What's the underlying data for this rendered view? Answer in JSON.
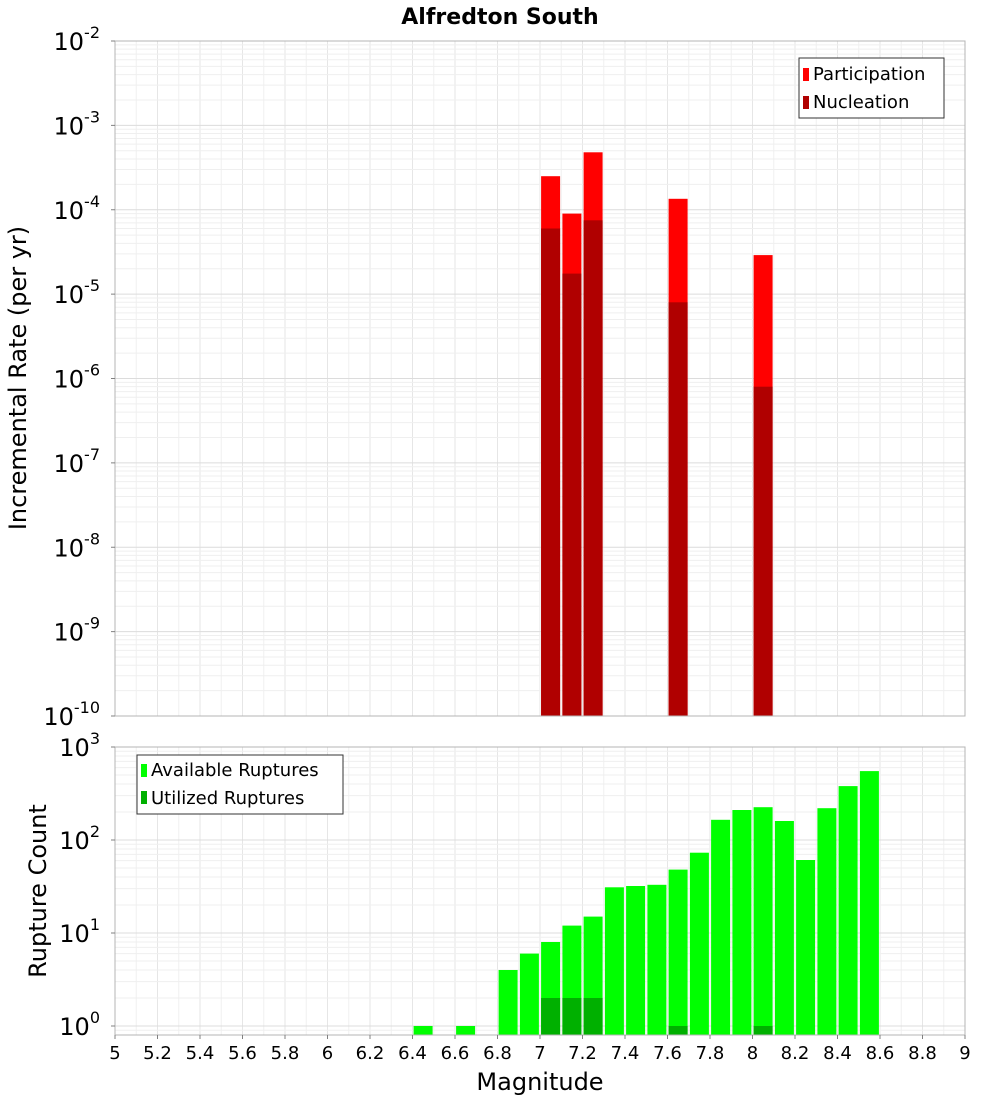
{
  "chart_data": [
    {
      "type": "bar",
      "title": "Alfredton South",
      "xlabel": "",
      "ylabel": "Incremental Rate (per yr)",
      "yscale": "log",
      "ylim": [
        1e-10,
        0.01
      ],
      "xlim": [
        5,
        9
      ],
      "y_ticks": [
        {
          "base": "10",
          "exp": "-10",
          "value": 1e-10
        },
        {
          "base": "10",
          "exp": "-9",
          "value": 1e-09
        },
        {
          "base": "10",
          "exp": "-8",
          "value": 1e-08
        },
        {
          "base": "10",
          "exp": "-7",
          "value": 1e-07
        },
        {
          "base": "10",
          "exp": "-6",
          "value": 1e-06
        },
        {
          "base": "10",
          "exp": "-5",
          "value": 1e-05
        },
        {
          "base": "10",
          "exp": "-4",
          "value": 0.0001
        },
        {
          "base": "10",
          "exp": "-3",
          "value": 0.001
        },
        {
          "base": "10",
          "exp": "-2",
          "value": 0.01
        }
      ],
      "legend": {
        "position": "top-right",
        "entries": [
          "Participation",
          "Nucleation"
        ]
      },
      "series": [
        {
          "name": "Participation",
          "color": "#ff0000",
          "x": [
            7.05,
            7.15,
            7.25,
            7.65,
            8.05
          ],
          "values": [
            0.00025,
            9e-05,
            0.00048,
            0.000135,
            2.9e-05
          ]
        },
        {
          "name": "Nucleation",
          "color": "#b00000",
          "x": [
            7.05,
            7.15,
            7.25,
            7.65,
            8.05
          ],
          "values": [
            6e-05,
            1.75e-05,
            7.5e-05,
            8e-06,
            8e-07
          ]
        }
      ]
    },
    {
      "type": "bar",
      "title": "",
      "xlabel": "Magnitude",
      "ylabel": "Rupture Count",
      "yscale": "log",
      "ylim": [
        0.8,
        1000
      ],
      "xlim": [
        5,
        9
      ],
      "y_ticks": [
        {
          "base": "10",
          "exp": "0",
          "value": 1
        },
        {
          "base": "10",
          "exp": "1",
          "value": 10
        },
        {
          "base": "10",
          "exp": "2",
          "value": 100
        },
        {
          "base": "10",
          "exp": "3",
          "value": 1000
        }
      ],
      "x_tick_labels": [
        "5",
        "5.2",
        "5.4",
        "5.6",
        "5.8",
        "6",
        "6.2",
        "6.4",
        "6.6",
        "6.8",
        "7",
        "7.2",
        "7.4",
        "7.6",
        "7.8",
        "8",
        "8.2",
        "8.4",
        "8.6",
        "8.8",
        "9"
      ],
      "legend": {
        "position": "top-left",
        "entries": [
          "Available Ruptures",
          "Utilized Ruptures"
        ]
      },
      "series": [
        {
          "name": "Available Ruptures",
          "color": "#00ff00",
          "x": [
            6.45,
            6.65,
            6.85,
            6.95,
            7.05,
            7.15,
            7.25,
            7.35,
            7.45,
            7.55,
            7.65,
            7.75,
            7.85,
            7.95,
            8.05,
            8.15,
            8.25,
            8.35,
            8.45,
            8.55
          ],
          "values": [
            1,
            1,
            4,
            6,
            8,
            12,
            15,
            31,
            32,
            33,
            48,
            73,
            165,
            210,
            225,
            160,
            61,
            220,
            380,
            550
          ]
        },
        {
          "name": "Utilized Ruptures",
          "color": "#00b000",
          "x": [
            7.05,
            7.15,
            7.25,
            7.65,
            8.05
          ],
          "values": [
            2,
            2,
            2,
            1,
            1
          ]
        }
      ]
    }
  ]
}
